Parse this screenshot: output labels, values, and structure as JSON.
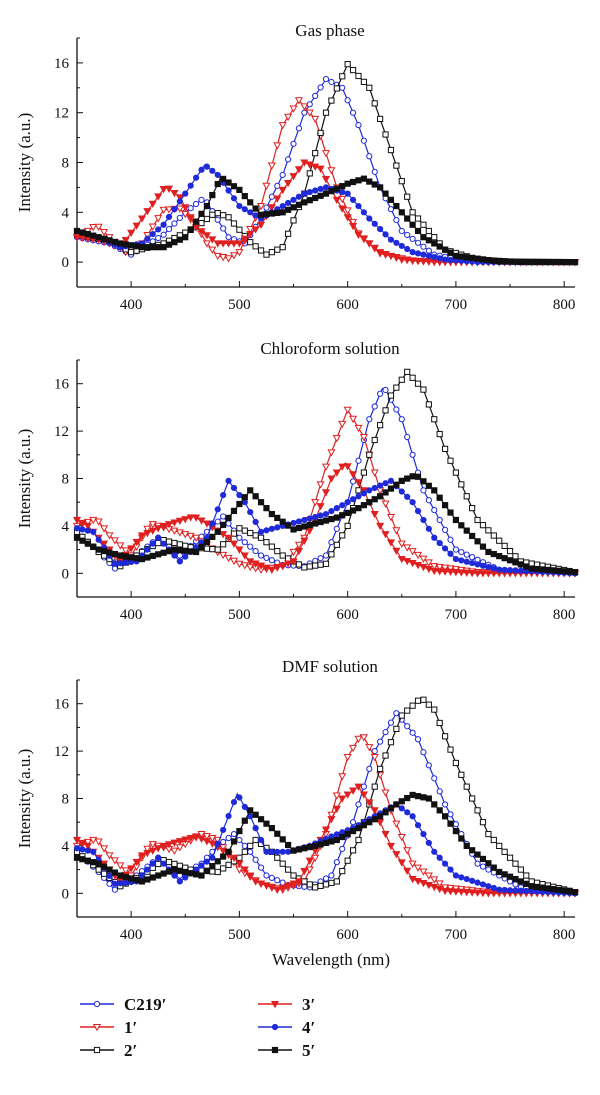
{
  "chart_data": [
    {
      "type": "line",
      "title": "Gas phase",
      "xlabel": "",
      "ylabel": "Intensity (a.u.)",
      "xlim": [
        350,
        810
      ],
      "ylim": [
        -2,
        18
      ],
      "xticks": [
        "400",
        "500",
        "600",
        "700",
        "800"
      ],
      "yticks": [
        "0",
        "4",
        "8",
        "12",
        "16"
      ],
      "series": [
        {
          "name": "C219′",
          "x": [
            350,
            380,
            400,
            430,
            450,
            465,
            470,
            490,
            505,
            520,
            540,
            560,
            580,
            595,
            610,
            630,
            650,
            680,
            710,
            750,
            810
          ],
          "y": [
            2.0,
            1.5,
            0.6,
            2.2,
            4.0,
            5.0,
            4.8,
            2.0,
            1.5,
            3.5,
            7.0,
            12.0,
            14.7,
            14.0,
            11.0,
            6.0,
            2.5,
            0.6,
            0.1,
            0.0,
            0.0
          ]
        },
        {
          "name": "1′",
          "x": [
            350,
            360,
            368,
            380,
            395,
            410,
            430,
            445,
            460,
            470,
            480,
            490,
            500,
            520,
            540,
            555,
            570,
            590,
            610,
            630,
            660,
            700,
            760,
            810
          ],
          "y": [
            2.0,
            2.5,
            3.0,
            2.0,
            0.8,
            1.5,
            4.2,
            4.3,
            3.0,
            1.5,
            0.5,
            0.3,
            0.8,
            4.5,
            11.0,
            13.0,
            11.5,
            6.0,
            2.3,
            0.7,
            0.1,
            0.0,
            0.0,
            0.0
          ]
        },
        {
          "name": "2′",
          "x": [
            350,
            380,
            400,
            430,
            460,
            478,
            490,
            510,
            525,
            540,
            560,
            580,
            600,
            620,
            640,
            660,
            690,
            720,
            760,
            810
          ],
          "y": [
            2.2,
            1.7,
            0.8,
            1.5,
            2.8,
            4.0,
            3.6,
            1.6,
            0.6,
            1.2,
            5.5,
            12.0,
            15.9,
            14.0,
            9.0,
            4.0,
            1.0,
            0.2,
            0.0,
            0.0
          ]
        },
        {
          "name": "3′",
          "x": [
            350,
            370,
            390,
            410,
            432,
            445,
            460,
            480,
            500,
            520,
            540,
            560,
            575,
            590,
            610,
            630,
            650,
            680,
            720,
            810
          ],
          "y": [
            2.0,
            1.8,
            1.2,
            3.5,
            6.1,
            5.2,
            2.8,
            1.5,
            1.5,
            3.0,
            5.8,
            8.0,
            7.5,
            5.0,
            2.2,
            0.8,
            0.2,
            0.0,
            0.0,
            0.0
          ]
        },
        {
          "name": "4′",
          "x": [
            350,
            370,
            390,
            410,
            430,
            450,
            468,
            480,
            500,
            520,
            540,
            560,
            580,
            600,
            620,
            640,
            660,
            690,
            720,
            810
          ],
          "y": [
            2.5,
            2.0,
            1.2,
            1.5,
            3.0,
            5.5,
            7.8,
            7.0,
            4.5,
            3.5,
            4.5,
            5.5,
            6.0,
            5.5,
            3.5,
            1.8,
            0.8,
            0.2,
            0.0,
            0.0
          ]
        },
        {
          "name": "5′",
          "x": [
            350,
            370,
            390,
            410,
            430,
            450,
            470,
            483,
            500,
            520,
            540,
            560,
            580,
            600,
            615,
            630,
            650,
            670,
            700,
            740,
            810
          ],
          "y": [
            2.5,
            2.0,
            1.5,
            1.2,
            1.2,
            2.0,
            4.5,
            6.8,
            5.8,
            3.8,
            4.0,
            4.8,
            5.5,
            6.3,
            6.7,
            6.0,
            4.0,
            2.0,
            0.5,
            0.05,
            0.0
          ]
        }
      ]
    },
    {
      "type": "line",
      "title": "Chloroform solution",
      "xlabel": "",
      "ylabel": "Intensity (a.u.)",
      "xlim": [
        350,
        810
      ],
      "ylim": [
        -2,
        18
      ],
      "xticks": [
        "400",
        "500",
        "600",
        "700",
        "800"
      ],
      "yticks": [
        "0",
        "4",
        "8",
        "12",
        "16"
      ],
      "series": [
        {
          "name": "C219′",
          "x": [
            350,
            368,
            385,
            405,
            425,
            445,
            470,
            485,
            500,
            520,
            540,
            560,
            580,
            600,
            620,
            633,
            650,
            670,
            700,
            740,
            810
          ],
          "y": [
            3.5,
            2.0,
            0.4,
            1.5,
            3.0,
            1.5,
            3.5,
            4.8,
            3.0,
            1.5,
            0.7,
            0.6,
            1.5,
            6.0,
            13.0,
            15.8,
            13.0,
            7.0,
            2.0,
            0.3,
            0.0
          ]
        },
        {
          "name": "1′",
          "x": [
            350,
            368,
            380,
            400,
            418,
            440,
            460,
            480,
            500,
            520,
            540,
            560,
            580,
            600,
            615,
            630,
            650,
            680,
            720,
            810
          ],
          "y": [
            4.0,
            4.6,
            3.2,
            1.5,
            4.2,
            3.6,
            3.0,
            1.8,
            0.8,
            0.3,
            0.6,
            3.0,
            9.0,
            13.8,
            11.5,
            7.0,
            2.5,
            0.6,
            0.1,
            0.0
          ]
        },
        {
          "name": "2′",
          "x": [
            350,
            370,
            390,
            410,
            430,
            455,
            480,
            500,
            520,
            540,
            560,
            580,
            600,
            620,
            640,
            655,
            670,
            690,
            720,
            760,
            810
          ],
          "y": [
            3.5,
            1.8,
            0.6,
            1.8,
            2.8,
            2.2,
            2.0,
            3.8,
            3.0,
            1.5,
            0.5,
            0.8,
            4.0,
            10.0,
            15.0,
            17.0,
            15.5,
            10.5,
            4.5,
            1.0,
            0.1
          ]
        },
        {
          "name": "3′",
          "x": [
            350,
            360,
            370,
            390,
            410,
            430,
            458,
            470,
            490,
            510,
            530,
            550,
            570,
            585,
            598,
            615,
            630,
            650,
            680,
            720,
            810
          ],
          "y": [
            4.5,
            4.0,
            3.0,
            1.0,
            3.2,
            4.0,
            4.8,
            4.2,
            3.0,
            1.0,
            0.3,
            1.0,
            4.5,
            8.0,
            9.3,
            7.0,
            4.0,
            1.2,
            0.2,
            0.0,
            0.0
          ]
        },
        {
          "name": "4′",
          "x": [
            350,
            365,
            385,
            405,
            425,
            445,
            470,
            490,
            505,
            520,
            540,
            560,
            580,
            600,
            620,
            640,
            660,
            680,
            700,
            740,
            810
          ],
          "y": [
            3.8,
            3.5,
            0.8,
            1.0,
            3.0,
            1.0,
            3.0,
            7.8,
            6.0,
            3.5,
            4.0,
            4.5,
            5.0,
            6.0,
            7.0,
            7.8,
            6.0,
            3.0,
            1.2,
            0.3,
            0.0
          ]
        },
        {
          "name": "5′",
          "x": [
            350,
            370,
            390,
            410,
            440,
            460,
            480,
            497,
            510,
            530,
            550,
            570,
            590,
            610,
            630,
            650,
            663,
            680,
            700,
            730,
            770,
            810
          ],
          "y": [
            3.0,
            2.0,
            1.5,
            1.2,
            2.0,
            1.8,
            3.5,
            5.5,
            7.0,
            5.0,
            3.7,
            4.2,
            4.7,
            5.5,
            6.5,
            7.8,
            8.3,
            7.0,
            4.5,
            1.8,
            0.4,
            0.1
          ]
        }
      ]
    },
    {
      "type": "line",
      "title": "DMF solution",
      "xlabel": "Wavelength (nm)",
      "ylabel": "Intensity (a.u.)",
      "xlim": [
        350,
        810
      ],
      "ylim": [
        -2,
        18
      ],
      "xticks": [
        "400",
        "500",
        "600",
        "700",
        "800"
      ],
      "yticks": [
        "0",
        "4",
        "8",
        "12",
        "16"
      ],
      "series": [
        {
          "name": "C219′",
          "x": [
            350,
            368,
            385,
            405,
            425,
            445,
            465,
            480,
            495,
            510,
            525,
            545,
            565,
            585,
            605,
            625,
            645,
            665,
            690,
            720,
            760,
            810
          ],
          "y": [
            3.5,
            2.0,
            0.3,
            1.5,
            3.0,
            1.5,
            2.5,
            4.0,
            5.0,
            3.5,
            1.5,
            0.7,
            0.5,
            1.5,
            6.0,
            12.0,
            15.2,
            13.0,
            7.5,
            2.5,
            0.5,
            0.0
          ]
        },
        {
          "name": "1′",
          "x": [
            350,
            368,
            380,
            400,
            418,
            440,
            465,
            480,
            500,
            520,
            540,
            560,
            580,
            600,
            613,
            625,
            640,
            660,
            690,
            730,
            810
          ],
          "y": [
            4.0,
            4.6,
            3.2,
            1.5,
            4.2,
            3.6,
            5.0,
            4.5,
            2.0,
            0.8,
            0.3,
            1.0,
            5.0,
            11.5,
            13.5,
            11.5,
            7.0,
            2.5,
            0.5,
            0.1,
            0.0
          ]
        },
        {
          "name": "2′",
          "x": [
            350,
            370,
            390,
            410,
            430,
            455,
            480,
            500,
            515,
            530,
            550,
            570,
            590,
            610,
            630,
            650,
            668,
            680,
            700,
            730,
            770,
            810
          ],
          "y": [
            3.5,
            2.0,
            0.6,
            1.5,
            2.8,
            2.0,
            1.8,
            3.0,
            4.5,
            3.5,
            1.5,
            0.5,
            1.0,
            4.5,
            10.5,
            15.0,
            16.5,
            15.5,
            11.0,
            5.0,
            1.0,
            0.1
          ]
        },
        {
          "name": "3′",
          "x": [
            350,
            360,
            370,
            390,
            410,
            430,
            460,
            475,
            495,
            515,
            535,
            555,
            575,
            595,
            610,
            625,
            640,
            660,
            690,
            730,
            810
          ],
          "y": [
            4.5,
            4.0,
            3.0,
            1.0,
            3.2,
            4.0,
            4.8,
            4.2,
            3.0,
            1.0,
            0.3,
            1.0,
            4.5,
            8.0,
            9.0,
            7.0,
            4.0,
            1.2,
            0.2,
            0.0,
            0.0
          ]
        },
        {
          "name": "4′",
          "x": [
            350,
            365,
            385,
            405,
            425,
            445,
            475,
            498,
            510,
            525,
            545,
            565,
            585,
            605,
            625,
            645,
            660,
            680,
            700,
            740,
            810
          ],
          "y": [
            3.8,
            3.5,
            0.8,
            1.0,
            3.0,
            1.0,
            3.0,
            8.4,
            6.5,
            3.5,
            3.5,
            4.0,
            4.8,
            5.5,
            6.5,
            7.5,
            6.5,
            3.5,
            1.5,
            0.3,
            0.0
          ]
        },
        {
          "name": "5′",
          "x": [
            350,
            370,
            390,
            410,
            440,
            465,
            490,
            510,
            530,
            550,
            570,
            590,
            610,
            630,
            645,
            660,
            675,
            690,
            710,
            740,
            770,
            810
          ],
          "y": [
            3.0,
            2.5,
            1.5,
            1.0,
            2.0,
            1.5,
            3.5,
            7.0,
            5.5,
            3.6,
            4.0,
            4.5,
            5.5,
            6.5,
            7.5,
            8.3,
            8.0,
            6.5,
            4.0,
            1.8,
            0.6,
            0.1
          ]
        }
      ]
    }
  ],
  "legend": {
    "position": "bottom",
    "items": [
      {
        "label": "C219′",
        "color": "#1f2ad9",
        "marker": "circle-open"
      },
      {
        "label": "1′",
        "color": "#e02020",
        "marker": "triangle-down-open"
      },
      {
        "label": "2′",
        "color": "#111111",
        "marker": "square-open"
      },
      {
        "label": "3′",
        "color": "#e02020",
        "marker": "triangle-down-filled"
      },
      {
        "label": "4′",
        "color": "#1f2ad9",
        "marker": "circle-filled"
      },
      {
        "label": "5′",
        "color": "#111111",
        "marker": "square-filled"
      }
    ]
  }
}
